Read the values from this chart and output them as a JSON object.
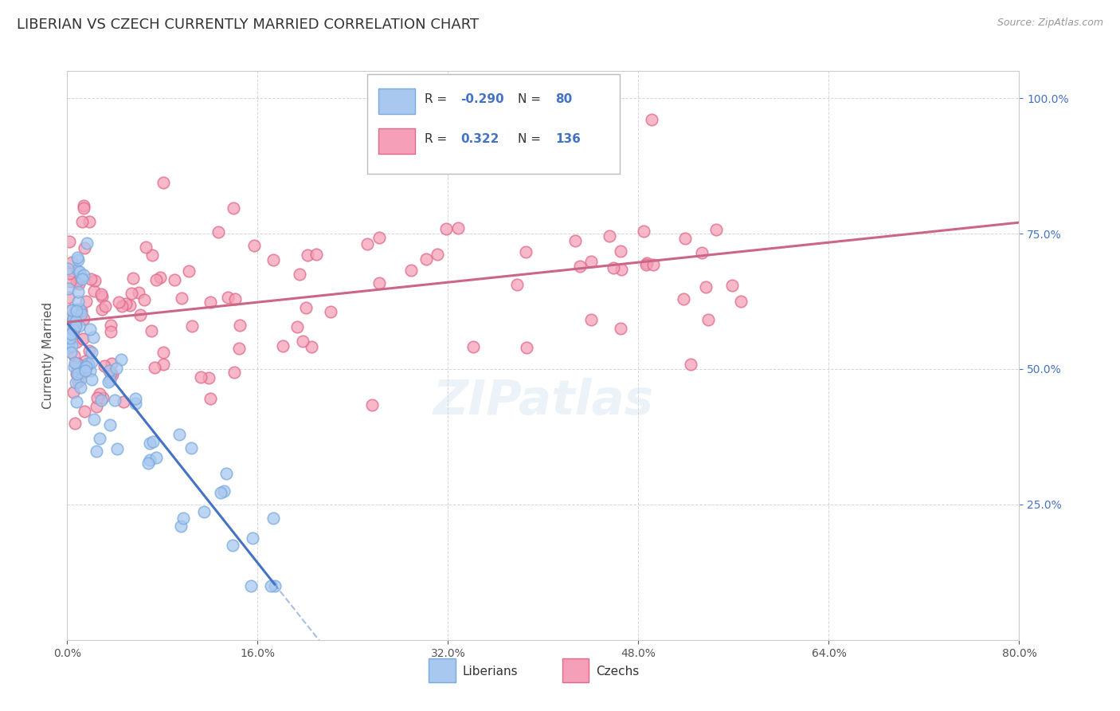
{
  "title": "LIBERIAN VS CZECH CURRENTLY MARRIED CORRELATION CHART",
  "source_text": "Source: ZipAtlas.com",
  "ylabel": "Currently Married",
  "xlim": [
    0.0,
    80.0
  ],
  "ylim": [
    0.0,
    105.0
  ],
  "ytick_values": [
    25.0,
    50.0,
    75.0,
    100.0
  ],
  "xtick_values": [
    0.0,
    16.0,
    32.0,
    48.0,
    64.0,
    80.0
  ],
  "liberian_color": "#a8c8f0",
  "czech_color": "#f5a0b8",
  "liberian_edge": "#7aaadd",
  "czech_edge": "#e06888",
  "trend_blue": "#4472c4",
  "trend_pink": "#cc6688",
  "R_liberian": -0.29,
  "N_liberian": 80,
  "R_czech": 0.322,
  "N_czech": 136,
  "legend_label_liberian": "Liberians",
  "legend_label_czech": "Czechs",
  "watermark": "ZIPatlas",
  "background_color": "#ffffff",
  "grid_color": "#cccccc"
}
